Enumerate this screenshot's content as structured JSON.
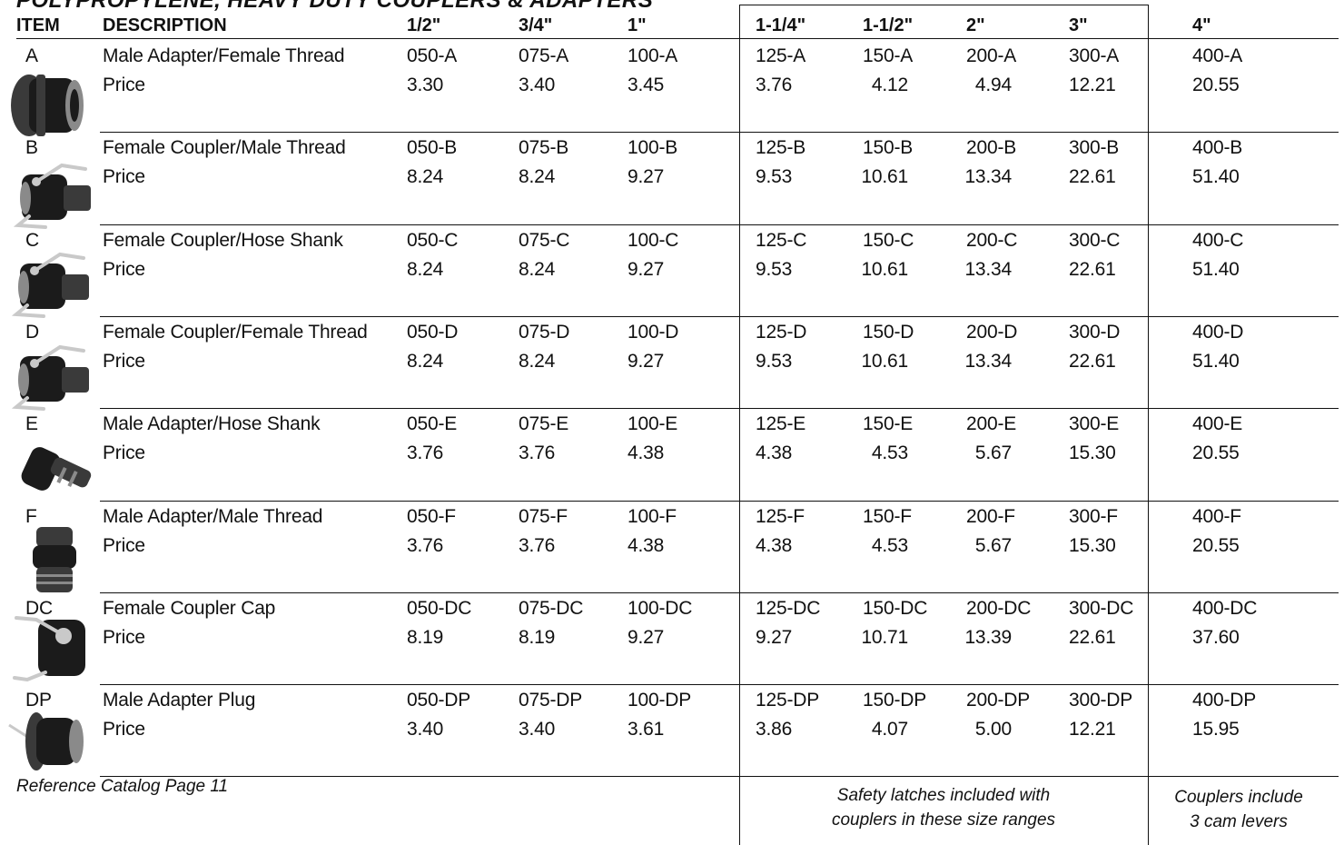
{
  "title": "POLYPROPYLENE, HEAVY DUTY COUPLERS & ADAPTERS",
  "headers": {
    "item": "ITEM",
    "description": "DESCRIPTION",
    "sizes": [
      "1/2\"",
      "3/4\"",
      "1\"",
      "1-1/4\"",
      "1-1/2\"",
      "2\"",
      "3\"",
      "4\""
    ]
  },
  "rows": [
    {
      "item": "A",
      "description": "Male Adapter/Female Thread",
      "price_label": "Price",
      "icon": "male-adapter-female-thread-icon",
      "codes": [
        "050-A",
        "075-A",
        "100-A",
        "125-A",
        "150-A",
        "200-A",
        "300-A",
        "400-A"
      ],
      "prices": [
        "3.30",
        "3.40",
        "3.45",
        "3.76",
        "4.12",
        "4.94",
        "12.21",
        "20.55"
      ]
    },
    {
      "item": "B",
      "description": "Female Coupler/Male Thread",
      "price_label": "Price",
      "icon": "female-coupler-male-thread-icon",
      "codes": [
        "050-B",
        "075-B",
        "100-B",
        "125-B",
        "150-B",
        "200-B",
        "300-B",
        "400-B"
      ],
      "prices": [
        "8.24",
        "8.24",
        "9.27",
        "9.53",
        "10.61",
        "13.34",
        "22.61",
        "51.40"
      ]
    },
    {
      "item": "C",
      "description": "Female Coupler/Hose Shank",
      "price_label": "Price",
      "icon": "female-coupler-hose-shank-icon",
      "codes": [
        "050-C",
        "075-C",
        "100-C",
        "125-C",
        "150-C",
        "200-C",
        "300-C",
        "400-C"
      ],
      "prices": [
        "8.24",
        "8.24",
        "9.27",
        "9.53",
        "10.61",
        "13.34",
        "22.61",
        "51.40"
      ]
    },
    {
      "item": "D",
      "description": "Female Coupler/Female Thread",
      "price_label": "Price",
      "icon": "female-coupler-female-thread-icon",
      "codes": [
        "050-D",
        "075-D",
        "100-D",
        "125-D",
        "150-D",
        "200-D",
        "300-D",
        "400-D"
      ],
      "prices": [
        "8.24",
        "8.24",
        "9.27",
        "9.53",
        "10.61",
        "13.34",
        "22.61",
        "51.40"
      ]
    },
    {
      "item": "E",
      "description": "Male Adapter/Hose Shank",
      "price_label": "Price",
      "icon": "male-adapter-hose-shank-icon",
      "codes": [
        "050-E",
        "075-E",
        "100-E",
        "125-E",
        "150-E",
        "200-E",
        "300-E",
        "400-E"
      ],
      "prices": [
        "3.76",
        "3.76",
        "4.38",
        "4.38",
        "4.53",
        "5.67",
        "15.30",
        "20.55"
      ]
    },
    {
      "item": "F",
      "description": "Male Adapter/Male Thread",
      "price_label": "Price",
      "icon": "male-adapter-male-thread-icon",
      "codes": [
        "050-F",
        "075-F",
        "100-F",
        "125-F",
        "150-F",
        "200-F",
        "300-F",
        "400-F"
      ],
      "prices": [
        "3.76",
        "3.76",
        "4.38",
        "4.38",
        "4.53",
        "5.67",
        "15.30",
        "20.55"
      ]
    },
    {
      "item": "DC",
      "description": "Female Coupler Cap",
      "price_label": "Price",
      "icon": "female-coupler-cap-icon",
      "codes": [
        "050-DC",
        "075-DC",
        "100-DC",
        "125-DC",
        "150-DC",
        "200-DC",
        "300-DC",
        "400-DC"
      ],
      "prices": [
        "8.19",
        "8.19",
        "9.27",
        "9.27",
        "10.71",
        "13.39",
        "22.61",
        "37.60"
      ]
    },
    {
      "item": "DP",
      "description": "Male Adapter Plug",
      "price_label": "Price",
      "icon": "male-adapter-plug-icon",
      "codes": [
        "050-DP",
        "075-DP",
        "100-DP",
        "125-DP",
        "150-DP",
        "200-DP",
        "300-DP",
        "400-DP"
      ],
      "prices": [
        "3.40",
        "3.40",
        "3.61",
        "3.86",
        "4.07",
        "5.00",
        "12.21",
        "15.95"
      ]
    }
  ],
  "footer": {
    "reference": "Reference Catalog Page 11",
    "safety_note_line1": "Safety latches included with",
    "safety_note_line2": "couplers in these size ranges",
    "cam_note_line1": "Couplers include",
    "cam_note_line2": "3 cam levers"
  }
}
